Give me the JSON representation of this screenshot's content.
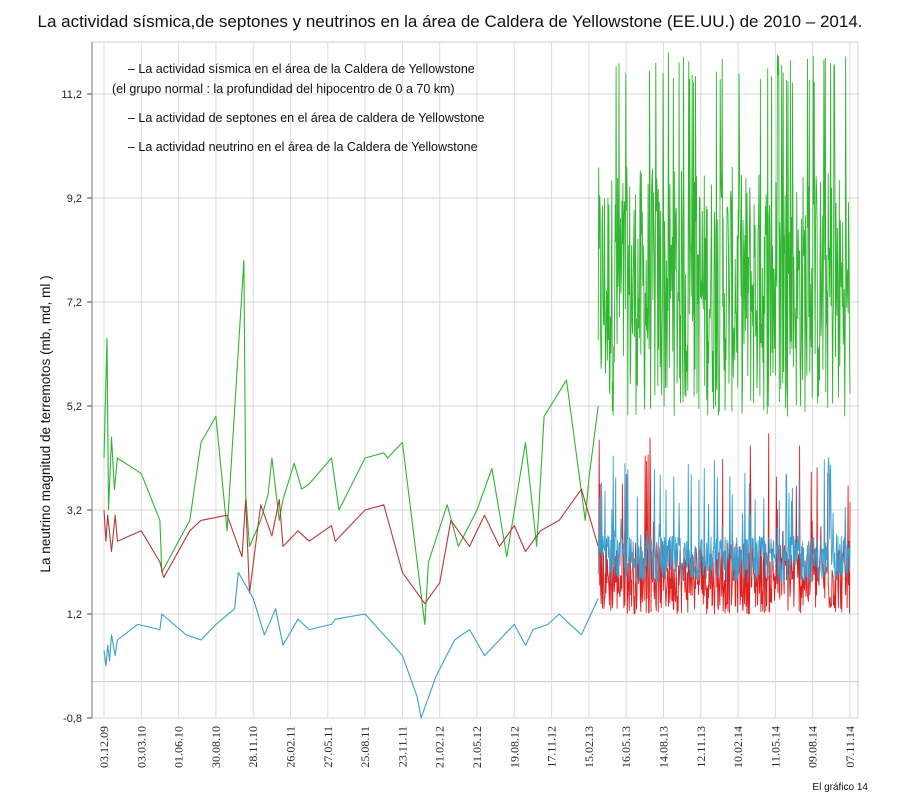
{
  "chart_data": {
    "type": "line",
    "title": "La actividad sísmica,de septones y neutrinos en la área de Caldera de Yellowstone  (EE.UU.) de 2010 – 2014.",
    "ylabel": "La neutrino magnitud de terremotos (mb, md, ml )",
    "xlabel": "",
    "ylim": [
      -0.8,
      12.2
    ],
    "y_ticks": [
      "-0,8",
      "1,2",
      "3,2",
      "5,2",
      "7,2",
      "9,2",
      "11,2"
    ],
    "x_ticks": [
      "03.12.09",
      "03.03.10",
      "01.06.10",
      "30.08.10",
      "28.11.10",
      "26.02.11",
      "27.05.11",
      "25.08.11",
      "23.11.11",
      "21.02.12",
      "21.05.12",
      "19.08.12",
      "17.11.12",
      "15.02.13",
      "16.05.13",
      "14.08.13",
      "12.11.13",
      "10.02.14",
      "11.05.14",
      "09.08.14",
      "07.11.14"
    ],
    "grid": true,
    "legend": {
      "placement": "top-left",
      "entries": [
        {
          "text": "– La actividad sísmica en el área de la Caldera de Yellowstone",
          "color": "#2fb52f"
        },
        {
          "text": "(el grupo normal : la profundidad del hipocentro de 0 a 70 km)",
          "color": "#2fb52f"
        },
        {
          "text": "– La actividad de septones en el área de caldera de Yellowstone",
          "color": "#b53a3a"
        },
        {
          "text": "– La actividad neutrino en el área de la Caldera de Yellowstone",
          "color": "#3a9fd0"
        }
      ]
    },
    "series": [
      {
        "color": "#2fb52f",
        "x": [
          0.0,
          0.08,
          0.12,
          0.2,
          0.28,
          0.36,
          1.0,
          1.5,
          1.55,
          2.3,
          2.6,
          3.0,
          3.3,
          3.75,
          3.8,
          3.9,
          4.2,
          4.4,
          4.5,
          4.7,
          4.8,
          5.1,
          5.3,
          5.5,
          6.1,
          6.3,
          7.0,
          7.5,
          7.6,
          8.0,
          8.6,
          8.7,
          9.2,
          9.5,
          10.0,
          10.4,
          10.8,
          11.3,
          11.6,
          11.8,
          12.4,
          12.9,
          13.0,
          13.25
        ],
        "y": [
          4.2,
          6.5,
          3.2,
          4.6,
          3.6,
          4.2,
          3.9,
          3.0,
          2.0,
          3.0,
          4.5,
          5.0,
          2.8,
          8.0,
          3.5,
          2.5,
          3.0,
          3.5,
          4.2,
          3.0,
          3.4,
          4.1,
          3.6,
          3.7,
          4.2,
          3.2,
          4.2,
          4.3,
          4.2,
          4.5,
          1.0,
          2.2,
          3.3,
          2.5,
          3.2,
          4.0,
          2.3,
          4.5,
          2.5,
          5.0,
          5.7,
          3.0,
          3.8,
          5.2
        ]
      },
      {
        "color": "#b53a3a",
        "x": [
          0.0,
          0.05,
          0.1,
          0.2,
          0.3,
          0.36,
          1.0,
          1.5,
          1.6,
          2.3,
          2.6,
          3.3,
          3.7,
          3.8,
          3.9,
          4.2,
          4.5,
          4.7,
          4.8,
          5.2,
          5.5,
          6.1,
          6.2,
          7.0,
          7.5,
          8.0,
          8.6,
          9.0,
          9.3,
          9.8,
          10.2,
          10.6,
          11.0,
          11.3,
          11.7,
          12.2,
          12.8,
          13.25
        ],
        "y": [
          3.2,
          2.6,
          3.1,
          2.4,
          3.1,
          2.6,
          2.8,
          2.2,
          1.9,
          2.8,
          3.0,
          3.1,
          2.3,
          3.4,
          1.6,
          3.3,
          2.7,
          3.4,
          2.5,
          2.8,
          2.6,
          2.9,
          2.6,
          3.2,
          3.3,
          2.0,
          1.4,
          1.8,
          3.0,
          2.5,
          3.1,
          2.5,
          2.9,
          2.4,
          2.8,
          3.0,
          3.6,
          2.5
        ]
      },
      {
        "color": "#3a9fd0",
        "x": [
          0.0,
          0.05,
          0.1,
          0.15,
          0.2,
          0.3,
          0.36,
          0.9,
          1.5,
          1.55,
          2.2,
          2.6,
          3.0,
          3.5,
          3.6,
          4.0,
          4.3,
          4.6,
          4.8,
          5.2,
          5.5,
          6.1,
          6.2,
          7.0,
          7.5,
          8.0,
          8.4,
          8.5,
          8.9,
          9.4,
          9.8,
          10.2,
          10.6,
          11.0,
          11.3,
          11.5,
          11.9,
          12.2,
          12.8,
          13.25
        ],
        "y": [
          0.5,
          0.2,
          0.6,
          0.3,
          0.8,
          0.4,
          0.7,
          1.0,
          0.9,
          1.2,
          0.8,
          0.7,
          1.0,
          1.3,
          2.0,
          1.5,
          0.8,
          1.3,
          0.6,
          1.1,
          0.9,
          1.0,
          1.1,
          1.2,
          0.8,
          0.4,
          -0.4,
          -0.8,
          0.0,
          0.7,
          0.9,
          0.4,
          0.7,
          1.0,
          0.6,
          0.9,
          1.0,
          1.2,
          0.8,
          1.5
        ]
      }
    ],
    "regime_after": {
      "x_start": 13.25,
      "x_end": 20.0,
      "green_range": [
        5.0,
        11.4
      ],
      "red_range": [
        1.2,
        2.6
      ],
      "blue_range": [
        1.8,
        2.7
      ]
    }
  },
  "footnote": "El gráfico 14"
}
